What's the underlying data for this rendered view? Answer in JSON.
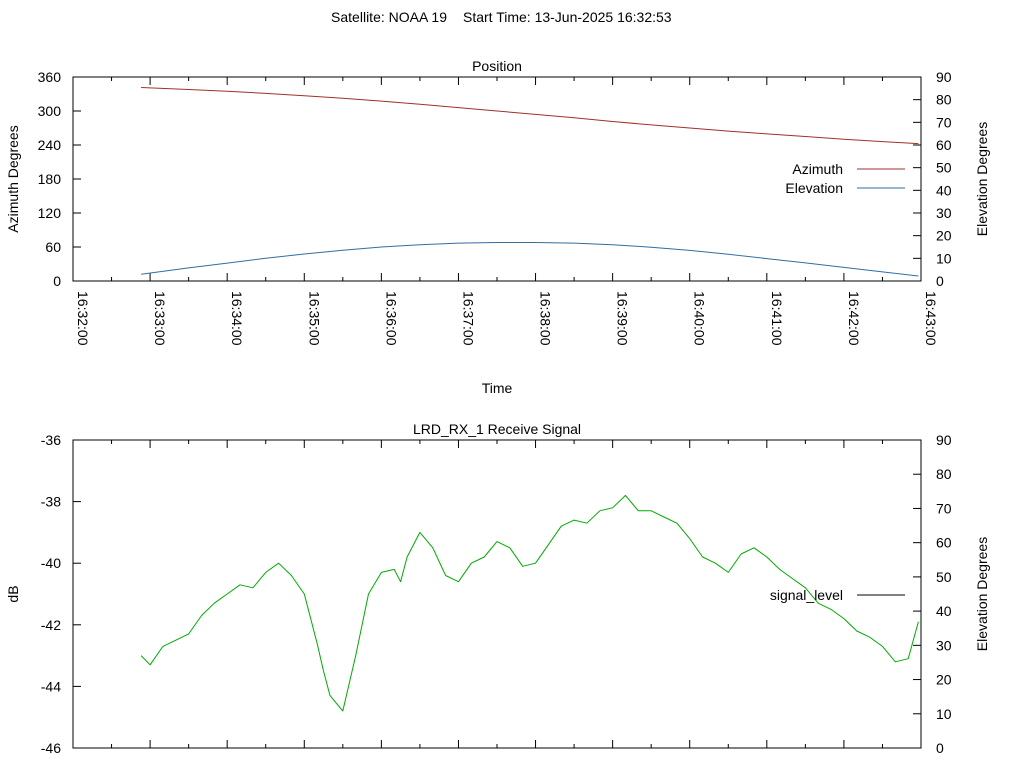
{
  "header": {
    "satellite": "Satellite: NOAA 19",
    "start_time": "Start Time: 13-Jun-2025 16:32:53"
  },
  "chart_data": [
    {
      "type": "line",
      "title": "Position",
      "xlabel": "Time",
      "ylabel": "Azimuth Degrees",
      "y2label": "Elevation Degrees",
      "xlim": [
        "16:32:00",
        "16:43:00"
      ],
      "ylim": [
        0,
        360
      ],
      "y2lim": [
        0,
        90
      ],
      "x_ticks": [
        "16:32:00",
        "16:33:00",
        "16:34:00",
        "16:35:00",
        "16:36:00",
        "16:37:00",
        "16:38:00",
        "16:39:00",
        "16:40:00",
        "16:41:00",
        "16:42:00",
        "16:43:00"
      ],
      "y_ticks": [
        0,
        60,
        120,
        180,
        240,
        300,
        360
      ],
      "y2_ticks": [
        0,
        10,
        20,
        30,
        40,
        50,
        60,
        70,
        80,
        90
      ],
      "legend_position": "right",
      "colors": {
        "Azimuth": "#a0302a",
        "Elevation": "#2f6fa0"
      },
      "series": [
        {
          "name": "Azimuth",
          "axis": "y",
          "x": [
            "16:32:53",
            "16:33:30",
            "16:34:00",
            "16:34:30",
            "16:35:00",
            "16:35:30",
            "16:36:00",
            "16:36:30",
            "16:37:00",
            "16:37:30",
            "16:38:00",
            "16:38:30",
            "16:39:00",
            "16:39:30",
            "16:40:00",
            "16:40:30",
            "16:41:00",
            "16:41:30",
            "16:42:00",
            "16:42:30",
            "16:42:58"
          ],
          "values": [
            341.5,
            338,
            335,
            331,
            327,
            322.5,
            317.5,
            312,
            306,
            300,
            294,
            288,
            281.5,
            275.5,
            270,
            264.5,
            259.5,
            255,
            250,
            246,
            242.5
          ]
        },
        {
          "name": "Elevation",
          "axis": "y2",
          "x": [
            "16:32:53",
            "16:33:30",
            "16:34:00",
            "16:34:30",
            "16:35:00",
            "16:35:30",
            "16:36:00",
            "16:36:30",
            "16:37:00",
            "16:37:30",
            "16:38:00",
            "16:38:30",
            "16:39:00",
            "16:39:30",
            "16:40:00",
            "16:40:30",
            "16:41:00",
            "16:41:30",
            "16:42:00",
            "16:42:30",
            "16:42:58"
          ],
          "values": [
            3.0,
            5.8,
            7.9,
            10.0,
            11.9,
            13.6,
            15.0,
            16.0,
            16.7,
            17.0,
            17.0,
            16.7,
            16.0,
            14.9,
            13.5,
            11.8,
            9.9,
            8.0,
            6.0,
            4.0,
            2.2
          ]
        }
      ]
    },
    {
      "type": "line",
      "title": "LRD_RX_1 Receive Signal",
      "ylabel": "dB",
      "y2label": "Elevation Degrees",
      "xlim": [
        "16:32:00",
        "16:43:00"
      ],
      "ylim": [
        -46,
        -36
      ],
      "y2lim": [
        0,
        90
      ],
      "y_ticks": [
        -46,
        -44,
        -42,
        -40,
        -38,
        -36
      ],
      "y2_ticks": [
        0,
        10,
        20,
        30,
        40,
        50,
        60,
        70,
        80,
        90
      ],
      "legend_position": "right",
      "colors": {
        "signal_level": "#00aa00"
      },
      "series": [
        {
          "name": "signal_level",
          "axis": "y",
          "x": [
            "16:32:53",
            "16:33:00",
            "16:33:10",
            "16:33:20",
            "16:33:30",
            "16:33:40",
            "16:33:50",
            "16:34:00",
            "16:34:10",
            "16:34:20",
            "16:34:30",
            "16:34:40",
            "16:34:50",
            "16:35:00",
            "16:35:05",
            "16:35:10",
            "16:35:15",
            "16:35:20",
            "16:35:30",
            "16:35:40",
            "16:35:50",
            "16:36:00",
            "16:36:10",
            "16:36:15",
            "16:36:20",
            "16:36:30",
            "16:36:40",
            "16:36:50",
            "16:37:00",
            "16:37:10",
            "16:37:20",
            "16:37:30",
            "16:37:40",
            "16:37:50",
            "16:38:00",
            "16:38:10",
            "16:38:20",
            "16:38:30",
            "16:38:40",
            "16:38:50",
            "16:39:00",
            "16:39:10",
            "16:39:20",
            "16:39:30",
            "16:39:40",
            "16:39:50",
            "16:40:00",
            "16:40:10",
            "16:40:20",
            "16:40:30",
            "16:40:40",
            "16:40:50",
            "16:41:00",
            "16:41:10",
            "16:41:20",
            "16:41:30",
            "16:41:40",
            "16:41:50",
            "16:42:00",
            "16:42:10",
            "16:42:20",
            "16:42:30",
            "16:42:40",
            "16:42:50",
            "16:42:58"
          ],
          "values": [
            -43.0,
            -43.3,
            -42.7,
            -42.5,
            -42.3,
            -41.7,
            -41.3,
            -41.0,
            -40.7,
            -40.8,
            -40.3,
            -40.0,
            -40.4,
            -41.0,
            -41.8,
            -42.6,
            -43.5,
            -44.3,
            -44.8,
            -43.0,
            -41.0,
            -40.3,
            -40.2,
            -40.6,
            -39.8,
            -39.0,
            -39.5,
            -40.4,
            -40.6,
            -40.0,
            -39.8,
            -39.3,
            -39.5,
            -40.1,
            -40.0,
            -39.4,
            -38.8,
            -38.6,
            -38.7,
            -38.3,
            -38.2,
            -37.8,
            -38.3,
            -38.3,
            -38.5,
            -38.7,
            -39.2,
            -39.8,
            -40.0,
            -40.3,
            -39.7,
            -39.5,
            -39.8,
            -40.2,
            -40.5,
            -40.8,
            -41.3,
            -41.5,
            -41.8,
            -42.2,
            -42.4,
            -42.7,
            -43.2,
            -43.1,
            -41.9
          ]
        }
      ]
    }
  ]
}
